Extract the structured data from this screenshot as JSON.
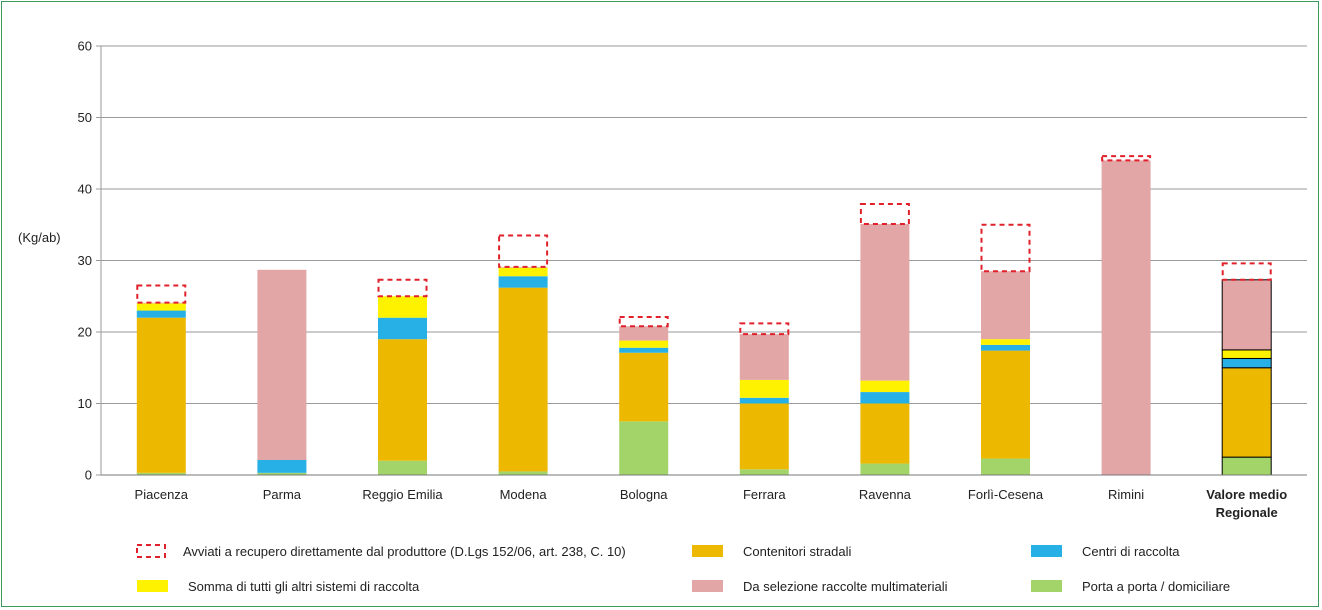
{
  "chart_data": {
    "type": "bar",
    "stacked": true,
    "ylabel": "(Kg/ab)",
    "ylim": [
      0,
      60
    ],
    "yticks": [
      "0",
      "10",
      "20",
      "30",
      "40",
      "50",
      "60"
    ],
    "grid": true,
    "legend_position": "bottom",
    "categories": [
      "Piacenza",
      "Parma",
      "Reggio Emilia",
      "Modena",
      "Bologna",
      "Ferrara",
      "Ravenna",
      "Forlì-Cesena",
      "Rimini",
      "Valore medio Regionale"
    ],
    "highlight_category": "Valore medio Regionale",
    "series": [
      {
        "name": "Porta a porta / domiciliare",
        "color": "#a3d46a",
        "values": [
          0.3,
          0.3,
          2.0,
          0.5,
          7.5,
          0.8,
          1.6,
          2.3,
          0.0,
          2.5
        ]
      },
      {
        "name": "Contenitori stradali",
        "color": "#edb800",
        "values": [
          21.7,
          0.0,
          17.0,
          25.7,
          9.6,
          9.2,
          8.4,
          15.1,
          0.0,
          12.5
        ]
      },
      {
        "name": "Centri di raccolta",
        "color": "#26b0e6",
        "values": [
          1.0,
          1.8,
          3.0,
          1.6,
          0.7,
          0.8,
          1.6,
          0.8,
          0.0,
          1.3
        ]
      },
      {
        "name": "Somma di tutti gli altri sistemi di raccolta",
        "color": "#fff200",
        "values": [
          1.0,
          0.0,
          3.0,
          1.2,
          1.0,
          2.5,
          1.6,
          0.8,
          0.0,
          1.2
        ]
      },
      {
        "name": "Da selezione raccolte multimateriali",
        "color": "#e3a6a6",
        "values": [
          0.1,
          26.6,
          0.0,
          0.1,
          2.0,
          6.4,
          21.9,
          9.5,
          44.0,
          9.8
        ]
      },
      {
        "name": "Avviati a recupero direttamente dal produttore (D.Lgs 152/06, art. 238, C. 10)",
        "color": "#e0202a",
        "dashed": true,
        "values": [
          2.4,
          0.0,
          2.3,
          4.4,
          1.3,
          1.5,
          2.8,
          6.5,
          0.6,
          2.3
        ]
      }
    ],
    "legend_order": [
      5,
      3,
      1,
      4,
      2,
      0
    ]
  }
}
